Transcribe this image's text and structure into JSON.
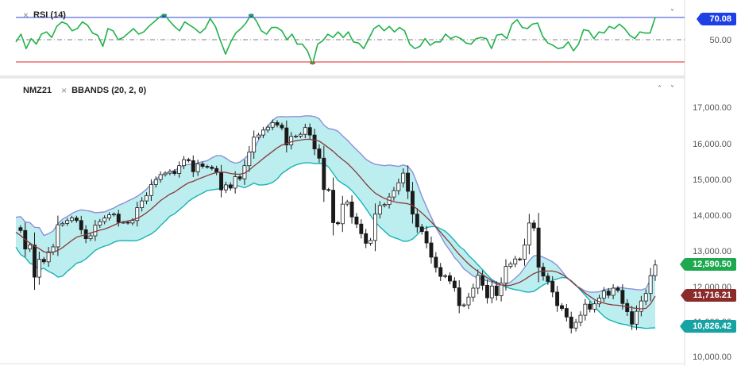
{
  "colors": {
    "rsi_line": "#22b14c",
    "rsi_overbought": "#2d44d8",
    "rsi_oversold": "#e02020",
    "bb_fill": "#b8ecee",
    "bb_upper": "#8d8fd9",
    "bb_lower": "#19b3b3",
    "bb_middle": "#8b3a3a",
    "candle": "#1a1a1a",
    "price_badge": "#1ea84f",
    "middle_badge": "#8b2b2b",
    "lower_badge": "#17a3a3",
    "rsi_badge": "#1f3fe6"
  },
  "rsi_pane": {
    "label": "RSI (14)",
    "close_icon": "×",
    "collapse_icon": "˅",
    "ticks": [
      "50.00"
    ],
    "current_badge": "70.08"
  },
  "price_pane": {
    "symbol": "NMZ21",
    "indicator_label": "BBANDS (20, 2, 0)",
    "close_icon": "×",
    "up_icon": "˄",
    "down_icon": "˅",
    "ticks": [
      "17,000.00",
      "16,000.00",
      "15,000.00",
      "14,000.00",
      "13,000.00",
      "12,000.00",
      "11,000.00",
      "10,000.00"
    ],
    "price_badge": "12,590.50",
    "middle_badge": "11,716.21",
    "lower_badge": "10,826.42"
  },
  "chart_data": [
    {
      "type": "line",
      "title": "RSI (14)",
      "ylim": [
        20,
        80
      ],
      "reference_lines": [
        30,
        50,
        70
      ],
      "series": [
        {
          "name": "RSI (14)",
          "values": [
            48,
            55,
            42,
            51,
            46,
            55,
            57,
            52,
            62,
            66,
            64,
            58,
            60,
            66,
            63,
            56,
            54,
            44,
            60,
            58,
            50,
            52,
            56,
            60,
            55,
            57,
            62,
            66,
            70,
            73,
            67,
            62,
            58,
            66,
            63,
            60,
            56,
            60,
            69,
            62,
            49,
            37,
            48,
            56,
            60,
            65,
            73,
            67,
            58,
            55,
            61,
            61,
            58,
            50,
            55,
            46,
            46,
            40,
            28,
            46,
            49,
            55,
            52,
            57,
            52,
            57,
            48,
            47,
            42,
            51,
            60,
            63,
            58,
            62,
            57,
            61,
            58,
            46,
            42,
            44,
            51,
            45,
            48,
            48,
            55,
            51,
            53,
            51,
            47,
            46,
            51,
            52,
            51,
            42,
            54,
            55,
            51,
            64,
            68,
            61,
            60,
            64,
            65,
            53,
            47,
            45,
            42,
            43,
            48,
            40,
            46,
            59,
            58,
            51,
            57,
            56,
            62,
            60,
            64,
            60,
            54,
            51,
            57,
            56,
            56,
            70.08
          ]
        }
      ]
    },
    {
      "type": "line",
      "title": "NMZ21 BBANDS (20, 2, 0)",
      "ylim": [
        10000,
        17000
      ],
      "series": [
        {
          "name": "NMZ21",
          "values": [
            13640,
            13560,
            13040,
            13150,
            12250,
            12750,
            12680,
            12960,
            13100,
            13720,
            13760,
            13840,
            13910,
            13840,
            13580,
            13330,
            13410,
            13710,
            13810,
            13910,
            14000,
            14020,
            13790,
            13790,
            13770,
            13840,
            14200,
            14390,
            14540,
            14850,
            14990,
            15130,
            15170,
            15220,
            15160,
            15380,
            15550,
            15520,
            15210,
            15430,
            15360,
            15340,
            15300,
            15190,
            14700,
            14840,
            14750,
            15070,
            15010,
            15380,
            15760,
            16180,
            16240,
            16380,
            16460,
            16590,
            16520,
            16440,
            15960,
            16200,
            16210,
            16260,
            16450,
            16240,
            15850,
            15590,
            14710,
            14690,
            13780,
            13750,
            14300,
            14360,
            13940,
            13740,
            13470,
            13200,
            13280,
            14020,
            14260,
            14290,
            14500,
            14680,
            14900,
            15170,
            14660,
            14020,
            13660,
            13530,
            13210,
            12810,
            12520,
            12270,
            12290,
            12140,
            11950,
            11450,
            11470,
            11690,
            11940,
            12300,
            12020,
            11670,
            12000,
            11730,
            12080,
            12550,
            12620,
            12760,
            12750,
            13150,
            13770,
            13630,
            12530,
            12280,
            12130,
            11830,
            11450,
            11370,
            11130,
            10820,
            10980,
            11180,
            11490,
            11350,
            11500,
            11660,
            11860,
            11740,
            11940,
            11880,
            11510,
            11280,
            10930,
            11290,
            11580,
            11790,
            12290,
            12590.5
          ]
        },
        {
          "name": "BBANDS Upper",
          "values": [
            13930,
            13950,
            13800,
            13780,
            13650,
            13640,
            13420,
            13470,
            13550,
            13750,
            13880,
            13950,
            14040,
            14100,
            14140,
            14120,
            14100,
            14060,
            14070,
            14080,
            14140,
            14190,
            14270,
            14320,
            14390,
            14450,
            14520,
            14610,
            14720,
            14860,
            15000,
            15100,
            15160,
            15200,
            15250,
            15320,
            15390,
            15420,
            15410,
            15460,
            15490,
            15520,
            15600,
            15660,
            15660,
            15590,
            15500,
            15450,
            15480,
            15580,
            15700,
            15850,
            16100,
            16320,
            16500,
            16650,
            16750,
            16760,
            16750,
            16760,
            16760,
            16760,
            16780,
            16780,
            16760,
            16700,
            16520,
            16420,
            16400,
            16350,
            16220,
            16100,
            15960,
            15830,
            15700,
            15560,
            15480,
            15420,
            15400,
            15380,
            15400,
            15380,
            15360,
            15400,
            15360,
            15200,
            14880,
            14520,
            14220,
            13930,
            13650,
            13410,
            13180,
            13000,
            12800,
            12660,
            12480,
            12380,
            12280,
            12220,
            12180,
            12150,
            12120,
            12050,
            12010,
            12050,
            12110,
            12220,
            12340,
            12520,
            12710,
            12850,
            12860,
            12810,
            12750,
            12680,
            12580,
            12420,
            12250,
            12130,
            12010,
            11940,
            11860,
            11830,
            11830,
            11840,
            11890,
            11920,
            11930,
            11960,
            11950,
            11930,
            11920,
            11900,
            11890,
            11930,
            12180,
            12420
          ]
        },
        {
          "name": "BBANDS Middle",
          "values": [
            13510,
            13420,
            13300,
            13210,
            13120,
            13050,
            12960,
            12940,
            12950,
            13000,
            13080,
            13180,
            13280,
            13370,
            13410,
            13440,
            13490,
            13530,
            13570,
            13600,
            13650,
            13710,
            13770,
            13800,
            13830,
            13860,
            13900,
            13970,
            14060,
            14160,
            14280,
            14400,
            14490,
            14580,
            14640,
            14730,
            14820,
            14900,
            14940,
            15000,
            15050,
            15100,
            15150,
            15190,
            15200,
            15190,
            15160,
            15140,
            15140,
            15170,
            15260,
            15370,
            15470,
            15580,
            15680,
            15780,
            15880,
            15960,
            16000,
            16050,
            16080,
            16100,
            16120,
            16120,
            16100,
            16070,
            15980,
            15880,
            15780,
            15660,
            15550,
            15450,
            15320,
            15180,
            15030,
            14870,
            14730,
            14610,
            14530,
            14460,
            14410,
            14370,
            14340,
            14330,
            14310,
            14260,
            14160,
            14050,
            13930,
            13800,
            13660,
            13510,
            13360,
            13210,
            13040,
            12890,
            12750,
            12620,
            12510,
            12410,
            12320,
            12230,
            12150,
            12080,
            12030,
            12010,
            12020,
            12060,
            12110,
            12180,
            12270,
            12350,
            12400,
            12420,
            12420,
            12420,
            12390,
            12330,
            12240,
            12140,
            12020,
            11910,
            11800,
            11710,
            11620,
            11560,
            11520,
            11490,
            11470,
            11460,
            11440,
            11420,
            11390,
            11370,
            11360,
            11370,
            11500,
            11716.21
          ]
        },
        {
          "name": "BBANDS Lower",
          "values": [
            13090,
            12890,
            12800,
            12640,
            12590,
            12460,
            12500,
            12410,
            12350,
            12250,
            12280,
            12410,
            12520,
            12640,
            12680,
            12760,
            12880,
            13000,
            13070,
            13120,
            13160,
            13230,
            13270,
            13280,
            13270,
            13270,
            13280,
            13330,
            13400,
            13460,
            13560,
            13700,
            13820,
            13960,
            14030,
            14140,
            14250,
            14380,
            14470,
            14540,
            14610,
            14680,
            14700,
            14720,
            14740,
            14790,
            14820,
            14830,
            14800,
            14760,
            14820,
            14890,
            14840,
            14840,
            14860,
            14910,
            15010,
            15160,
            15250,
            15340,
            15400,
            15440,
            15460,
            15460,
            15440,
            15440,
            15440,
            15340,
            15160,
            14970,
            14880,
            14800,
            14680,
            14530,
            14360,
            14180,
            13980,
            13800,
            13660,
            13540,
            13420,
            13360,
            13320,
            13260,
            13260,
            13320,
            13440,
            13580,
            13640,
            13670,
            13670,
            13610,
            13540,
            13420,
            13280,
            13120,
            13020,
            12860,
            12740,
            12600,
            12460,
            12310,
            12180,
            12110,
            12050,
            11970,
            11930,
            11900,
            11880,
            11840,
            11830,
            11850,
            11940,
            12030,
            12090,
            12160,
            12200,
            12240,
            12230,
            12150,
            12030,
            11880,
            11740,
            11590,
            11410,
            11280,
            11150,
            11060,
            11010,
            10960,
            10930,
            10910,
            10860,
            10840,
            10830,
            10810,
            10820,
            10826.42
          ]
        }
      ]
    }
  ]
}
